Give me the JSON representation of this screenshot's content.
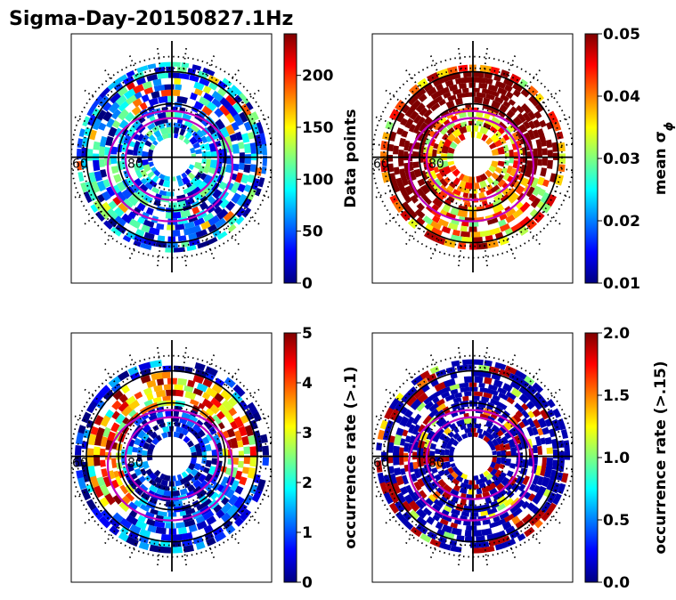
{
  "title": "Sigma-Day-20150827.1Hz",
  "colors": {
    "jet": [
      "#00007f",
      "#0000ff",
      "#007fff",
      "#00ffff",
      "#7fff7f",
      "#ffff00",
      "#ff7f00",
      "#ff0000",
      "#7f0000"
    ],
    "grid": "#000000",
    "oval": "#c000c0"
  },
  "chart_data": [
    {
      "type": "heatmap",
      "projection": "polar",
      "colorbar": {
        "label": "Data points",
        "ticks": [
          "0",
          "50",
          "100",
          "150",
          "200"
        ],
        "range": [
          0,
          240
        ]
      },
      "latitude_labels": [
        "60",
        "80"
      ],
      "dominant_level": 0.25
    },
    {
      "type": "heatmap",
      "projection": "polar",
      "colorbar": {
        "label": "mean σ",
        "label_subscript": "ϕ",
        "ticks": [
          "0.01",
          "0.02",
          "0.03",
          "0.04",
          "0.05"
        ],
        "range": [
          0.01,
          0.05
        ]
      },
      "latitude_labels": [
        "60",
        "80"
      ],
      "dominant_level": 0.75
    },
    {
      "type": "heatmap",
      "projection": "polar",
      "colorbar": {
        "label": "occurrence rate (>.1)",
        "ticks": [
          "0",
          "1",
          "2",
          "3",
          "4",
          "5"
        ],
        "range": [
          0,
          5
        ]
      },
      "latitude_labels": [
        "60",
        "80"
      ],
      "dominant_level": 0.1
    },
    {
      "type": "heatmap",
      "projection": "polar",
      "colorbar": {
        "label": "occurrence rate (>.15)",
        "ticks": [
          "0.0",
          "0.5",
          "1.0",
          "1.5",
          "2.0"
        ],
        "range": [
          0.0,
          2.0
        ]
      },
      "latitude_labels": [
        "60",
        "80"
      ],
      "dominant_level": 0.05
    }
  ]
}
